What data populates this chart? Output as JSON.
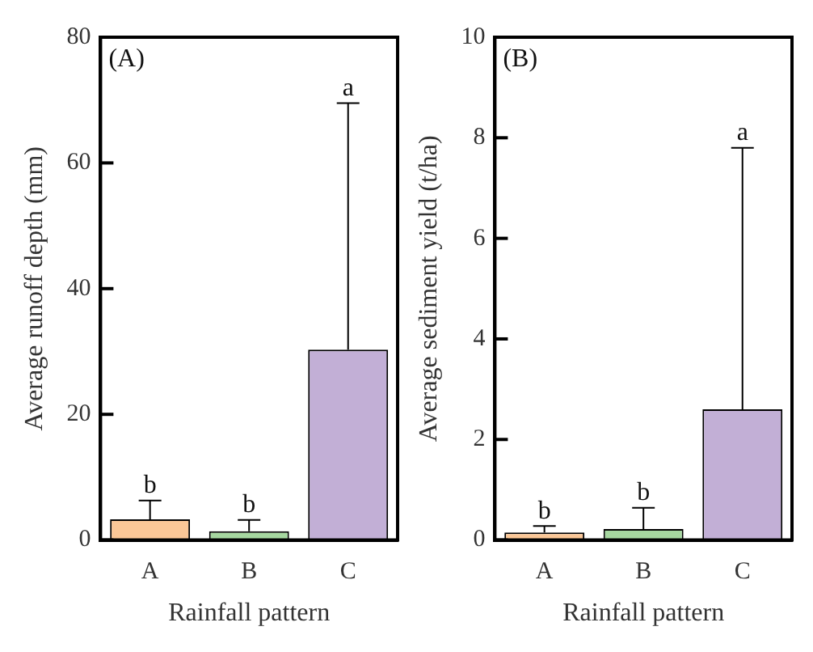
{
  "chart_data": [
    {
      "type": "bar",
      "xlabel": "Rainfall pattern",
      "ylabel": "Average runoff depth (mm)",
      "categories": [
        "A",
        "B",
        "C"
      ],
      "values": [
        3.3,
        1.4,
        30.3
      ],
      "colors": [
        "#fbc797",
        "#a6d7a0",
        "#c2afd6"
      ],
      "errors": [
        [
          3.3,
          6.3
        ],
        [
          1.4,
          3.2
        ],
        [
          30.3,
          69.5
        ]
      ],
      "ylim": [
        0,
        80
      ],
      "yticks": [
        0,
        20,
        40,
        60,
        80
      ],
      "grid": false,
      "legend": false,
      "annotations": [
        "(A)",
        {
          "text": "b",
          "x": "A",
          "y": 6.3
        },
        {
          "text": "b",
          "x": "B",
          "y": 3.2
        },
        {
          "text": "a",
          "x": "C",
          "y": 69.5
        }
      ]
    },
    {
      "type": "bar",
      "xlabel": "Rainfall pattern",
      "ylabel": "Average sediment yield (t/ha)",
      "categories": [
        "A",
        "B",
        "C"
      ],
      "values": [
        0.15,
        0.22,
        2.6
      ],
      "colors": [
        "#fbc797",
        "#a6d7a0",
        "#c2afd6"
      ],
      "errors": [
        [
          0.15,
          0.28
        ],
        [
          0.22,
          0.64
        ],
        [
          2.6,
          7.8
        ]
      ],
      "ylim": [
        0,
        10
      ],
      "yticks": [
        0,
        2,
        4,
        6,
        8,
        10
      ],
      "grid": false,
      "legend": false,
      "annotations": [
        "(B)",
        {
          "text": "b",
          "x": "A",
          "y": 0.28
        },
        {
          "text": "b",
          "x": "B",
          "y": 0.64
        },
        {
          "text": "a",
          "x": "C",
          "y": 7.8
        }
      ]
    }
  ]
}
